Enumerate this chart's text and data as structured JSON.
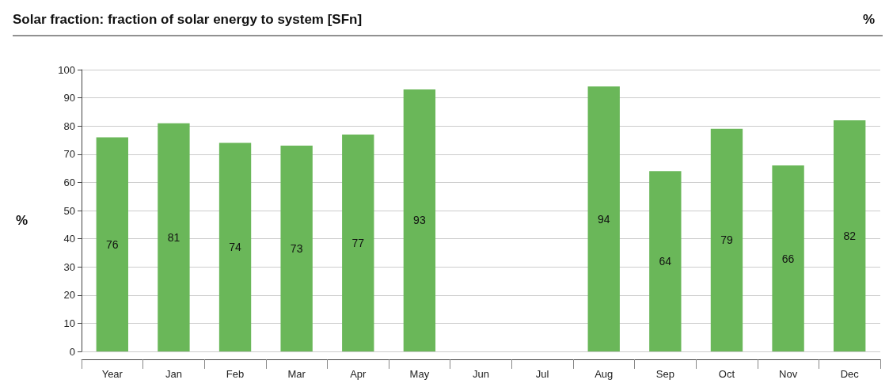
{
  "chart_data": {
    "type": "bar",
    "title": "Solar fraction: fraction of solar energy to system [SFn]",
    "ylabel": "%",
    "annotations": [
      "%"
    ],
    "categories": [
      "Year",
      "Jan",
      "Feb",
      "Mar",
      "Apr",
      "May",
      "Jun",
      "Jul",
      "Aug",
      "Sep",
      "Oct",
      "Nov",
      "Dec"
    ],
    "values": [
      76,
      81,
      74,
      73,
      77,
      93,
      null,
      null,
      94,
      64,
      79,
      66,
      82
    ],
    "color": "#6ab759",
    "ylim": [
      0,
      100
    ],
    "yticks": [
      0,
      10,
      20,
      30,
      40,
      50,
      60,
      70,
      80,
      90,
      100
    ],
    "grid": "y",
    "data_labels": true
  }
}
